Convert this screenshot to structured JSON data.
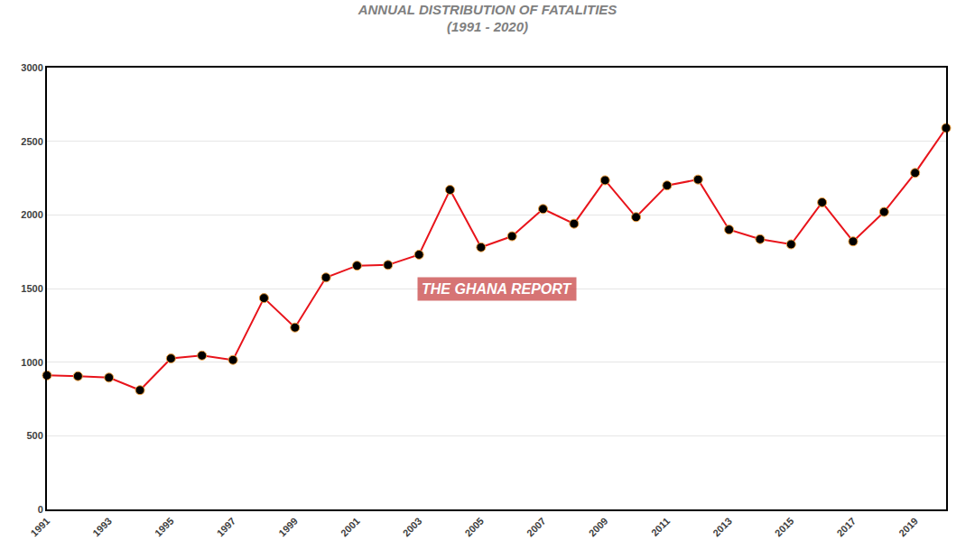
{
  "chart_data": {
    "type": "line",
    "title": "ANNUAL DISTRIBUTION OF FATALITIES",
    "subtitle": "(1991 - 2020)",
    "annotations": [
      "THE GHANA REPORT"
    ],
    "x": [
      1991,
      1992,
      1993,
      1994,
      1995,
      1996,
      1997,
      1998,
      1999,
      2000,
      2001,
      2002,
      2003,
      2004,
      2005,
      2006,
      2007,
      2008,
      2009,
      2010,
      2011,
      2012,
      2013,
      2014,
      2015,
      2016,
      2017,
      2018,
      2019,
      2020
    ],
    "values": [
      910,
      905,
      895,
      810,
      1025,
      1045,
      1015,
      1435,
      1235,
      1575,
      1655,
      1660,
      1730,
      2170,
      1780,
      1855,
      2040,
      1940,
      2235,
      1985,
      2200,
      2240,
      1900,
      1835,
      1800,
      2085,
      1820,
      2020,
      2285,
      2590
    ],
    "color": "#e8141b",
    "marker": "circle",
    "line_style": "solid",
    "xlim": [
      1991,
      2020
    ],
    "xticks": [
      1991,
      1993,
      1995,
      1997,
      1999,
      2001,
      2003,
      2005,
      2007,
      2009,
      2011,
      2013,
      2015,
      2017,
      2019
    ],
    "ylim": [
      0,
      3000
    ],
    "yticks": [
      0,
      500,
      1000,
      1500,
      2000,
      2500,
      3000
    ],
    "grid": true
  }
}
